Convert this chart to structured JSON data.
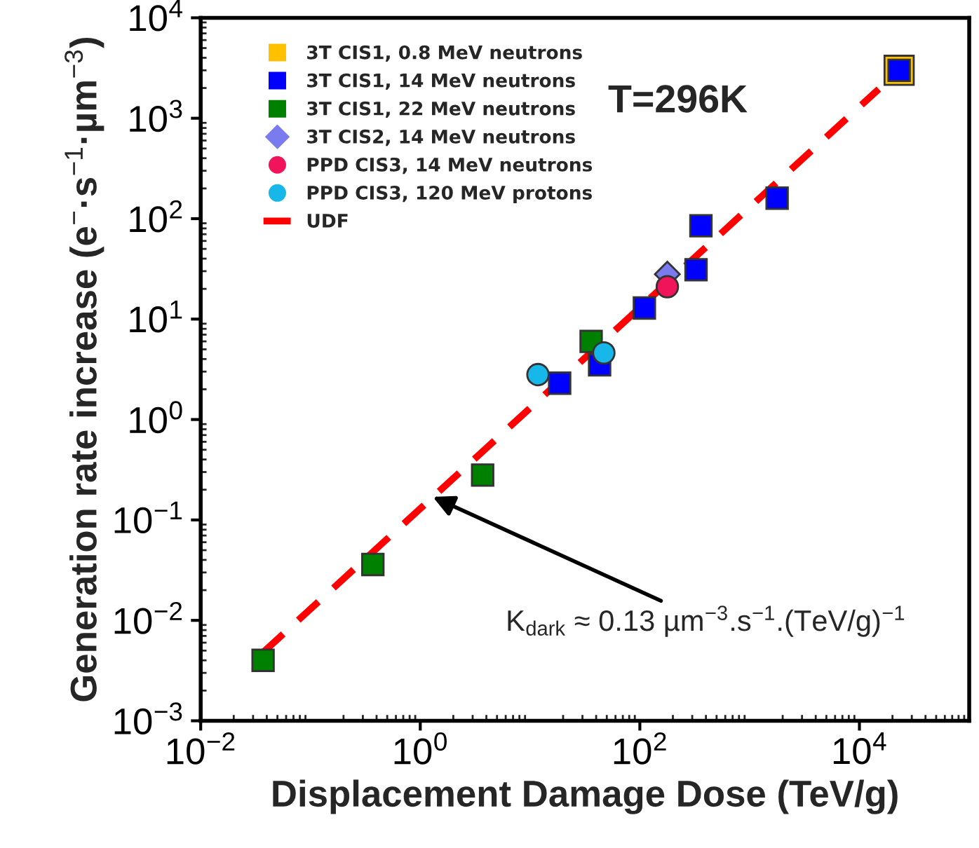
{
  "chart_data": {
    "type": "scatter",
    "xlabel": "Displacement Damage Dose (TeV/g)",
    "ylabel": "Generation rate increase (e$^{−}$·s$^{−1}$·µm$^{−3}$)",
    "log": "xy",
    "xlim": [
      0.01,
      100000
    ],
    "xticks": [
      {
        "value": 0.01,
        "label": "10$^{−2}$"
      },
      {
        "value": 1,
        "label": "10$^{0}$"
      },
      {
        "value": 100,
        "label": "10$^{2}$"
      },
      {
        "value": 10000,
        "label": "10$^{4}$"
      }
    ],
    "ylim": [
      0.001,
      10000
    ],
    "yticks": [
      {
        "value": 0.001,
        "label": "10$^{−3}$"
      },
      {
        "value": 0.01,
        "label": "10$^{−2}$"
      },
      {
        "value": 0.1,
        "label": "10$^{−1}$"
      },
      {
        "value": 1,
        "label": "10$^{0}$"
      },
      {
        "value": 10,
        "label": "10$^{1}$"
      },
      {
        "value": 100,
        "label": "10$^{2}$"
      },
      {
        "value": 1000,
        "label": "10$^{3}$"
      },
      {
        "value": 10000,
        "label": "10$^{4}$"
      }
    ],
    "grid": false,
    "legend": "top left",
    "series": [
      {
        "name": "3T CIS1, 0.8 MeV neutrons",
        "marker": "square",
        "color": "#ffc000",
        "x": [
          23000
        ],
        "values": [
          3000
        ]
      },
      {
        "name": "3T CIS1, 14 MeV neutrons",
        "marker": "square",
        "color": "#0000ff",
        "x": [
          23000,
          1780,
          360,
          325,
          110,
          43,
          18.6
        ],
        "values": [
          3000,
          160,
          85,
          31,
          12.9,
          3.5,
          2.3
        ]
      },
      {
        "name": "3T CIS1, 22 MeV neutrons",
        "marker": "square",
        "color": "#008000",
        "x": [
          36,
          3.7,
          0.37,
          0.037
        ],
        "values": [
          6,
          0.28,
          0.036,
          0.004
        ]
      },
      {
        "name": "3T CIS2, 14 MeV neutrons",
        "marker": "diamond",
        "color": "#7b7bf0",
        "x": [
          178
        ],
        "values": [
          28
        ]
      },
      {
        "name": "PPD CIS3, 14 MeV neutrons",
        "marker": "circle",
        "color": "#f0145a",
        "x": [
          178
        ],
        "values": [
          21
        ]
      },
      {
        "name": "PPD CIS3, 120 MeV protons",
        "marker": "circle",
        "color": "#17b7ea",
        "x": [
          11.8,
          47
        ],
        "values": [
          2.8,
          4.6
        ]
      },
      {
        "name": "UDF",
        "type": "line",
        "line_style": "dashed",
        "color": "#ff0000",
        "x": [
          0.037,
          15000
        ],
        "values": [
          0.0048,
          1950
        ]
      }
    ],
    "annotations": [
      "T=296K",
      {
        "text": "K$_{dark}$ ≈ 0.13 µm$^{−3}$.s$^{−1}$.(TeV/g)$^{−1}$",
        "x": 1.3,
        "y": 0.17
      }
    ]
  }
}
